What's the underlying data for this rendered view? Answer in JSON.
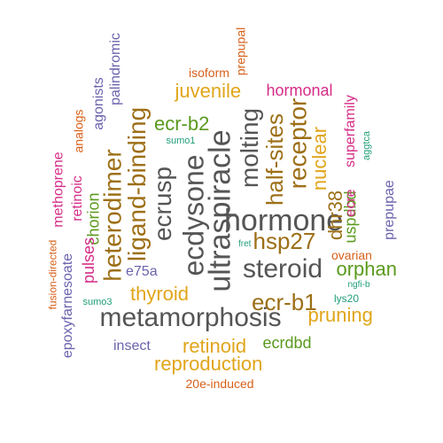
{
  "colors": {
    "grey": "#555555",
    "orange": "#d8601a",
    "purple": "#6a63ad",
    "magenta": "#d62c87",
    "green": "#5a9a1e",
    "gold": "#e1a51a",
    "brown": "#9d6f17",
    "teal": "#1f9e78"
  },
  "words": [
    {
      "id": "hormone",
      "text": "hormone",
      "color": "grey"
    },
    {
      "id": "metamorphosis",
      "text": "metamorphosis",
      "color": "grey"
    },
    {
      "id": "ecdysone",
      "text": "ecdysone",
      "color": "grey"
    },
    {
      "id": "ultraspiracle",
      "text": "ultraspiracle",
      "color": "grey"
    },
    {
      "id": "steroid",
      "text": "steroid",
      "color": "grey"
    },
    {
      "id": "ecrusp",
      "text": "ecrusp",
      "color": "grey"
    },
    {
      "id": "molting",
      "text": "molting",
      "color": "grey"
    },
    {
      "id": "ligand-binding",
      "text": "ligand-binding",
      "color": "brown"
    },
    {
      "id": "heterodimer",
      "text": "heterodimer",
      "color": "brown"
    },
    {
      "id": "receptor",
      "text": "receptor",
      "color": "brown"
    },
    {
      "id": "half-sites",
      "text": "half-sites",
      "color": "brown"
    },
    {
      "id": "hsp27",
      "text": "hsp27",
      "color": "brown"
    },
    {
      "id": "ecr-b1",
      "text": "ecr-b1",
      "color": "brown"
    },
    {
      "id": "dhr38",
      "text": "dhr38",
      "color": "brown"
    },
    {
      "id": "juvenile",
      "text": "juvenile",
      "color": "gold"
    },
    {
      "id": "thyroid",
      "text": "thyroid",
      "color": "gold"
    },
    {
      "id": "retinoid",
      "text": "retinoid",
      "color": "gold"
    },
    {
      "id": "reproduction",
      "text": "reproduction",
      "color": "gold"
    },
    {
      "id": "pruning",
      "text": "pruning",
      "color": "gold"
    },
    {
      "id": "nuclear",
      "text": "nuclear",
      "color": "gold"
    },
    {
      "id": "ecr-b2",
      "text": "ecr-b2",
      "color": "green"
    },
    {
      "id": "orphan",
      "text": "orphan",
      "color": "green"
    },
    {
      "id": "ecrdbd",
      "text": "ecrdbd",
      "color": "green"
    },
    {
      "id": "chorion",
      "text": "chorion",
      "color": "green"
    },
    {
      "id": "uspdbd",
      "text": "uspdbd",
      "color": "green"
    },
    {
      "id": "hormonal",
      "text": "hormonal",
      "color": "magenta"
    },
    {
      "id": "superfamily",
      "text": "superfamily",
      "color": "magenta"
    },
    {
      "id": "ecre",
      "text": "ecre",
      "color": "magenta"
    },
    {
      "id": "pulses",
      "text": "pulses",
      "color": "magenta"
    },
    {
      "id": "methoprene",
      "text": "methoprene",
      "color": "magenta"
    },
    {
      "id": "retinoic",
      "text": "retinoic",
      "color": "magenta"
    },
    {
      "id": "palindromic",
      "text": "palindromic",
      "color": "purple"
    },
    {
      "id": "agonists",
      "text": "agonists",
      "color": "purple"
    },
    {
      "id": "prepupae",
      "text": "prepupae",
      "color": "purple"
    },
    {
      "id": "e75a",
      "text": "e75a",
      "color": "purple"
    },
    {
      "id": "insect",
      "text": "insect",
      "color": "purple"
    },
    {
      "id": "epoxyfarnesoate",
      "text": "epoxyfarnesoate",
      "color": "purple"
    },
    {
      "id": "isoform",
      "text": "isoform",
      "color": "orange"
    },
    {
      "id": "prepupal",
      "text": "prepupal",
      "color": "orange"
    },
    {
      "id": "analogs",
      "text": "analogs",
      "color": "orange"
    },
    {
      "id": "fusion-directed",
      "text": "fusion-directed",
      "color": "orange"
    },
    {
      "id": "ovarian",
      "text": "ovarian",
      "color": "orange"
    },
    {
      "id": "20e-induced",
      "text": "20e-induced",
      "color": "orange"
    },
    {
      "id": "sumo1",
      "text": "sumo1",
      "color": "teal"
    },
    {
      "id": "sumo3",
      "text": "sumo3",
      "color": "teal"
    },
    {
      "id": "aggtca",
      "text": "aggtca",
      "color": "teal"
    },
    {
      "id": "fret",
      "text": "fret",
      "color": "teal"
    },
    {
      "id": "ngfi-b",
      "text": "ngfi-b",
      "color": "teal"
    },
    {
      "id": "lys20",
      "text": "lys20",
      "color": "teal"
    }
  ]
}
